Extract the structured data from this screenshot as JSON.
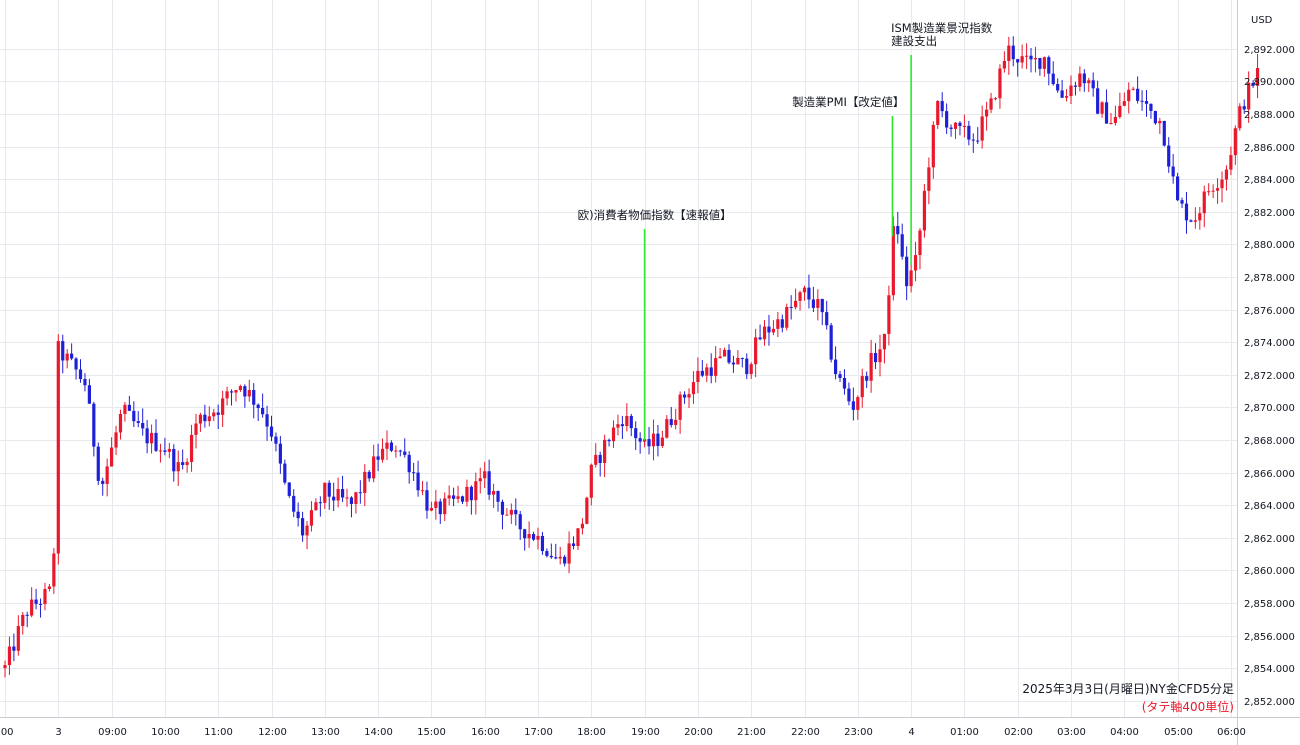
{
  "chart_data": {
    "type": "candlestick",
    "currency": "USD",
    "caption": "2025年3月3日(月曜日)NY金CFD5分足",
    "caption_note": "(タテ軸400単位)",
    "y_ticks": [
      "2,852.000",
      "2,854.000",
      "2,856.000",
      "2,858.000",
      "2,860.000",
      "2,862.000",
      "2,864.000",
      "2,866.000",
      "2,868.000",
      "2,870.000",
      "2,872.000",
      "2,874.000",
      "2,876.000",
      "2,878.000",
      "2,880.000",
      "2,882.000",
      "2,884.000",
      "2,886.000",
      "2,888.000",
      "2,890.000",
      "2,892.000"
    ],
    "ylim": [
      2851.0,
      2895.0
    ],
    "x_ticks": [
      ":00",
      "3",
      "09:00",
      "10:00",
      "11:00",
      "12:00",
      "13:00",
      "14:00",
      "15:00",
      "16:00",
      "17:00",
      "18:00",
      "19:00",
      "20:00",
      "21:00",
      "22:00",
      "23:00",
      "4",
      "01:00",
      "02:00",
      "03:00",
      "04:00",
      "05:00",
      "06:00"
    ],
    "grid": true,
    "colors": {
      "up": "#e8192c",
      "down": "#1e20d8",
      "event_line": "#2ee82e",
      "note": "#e8192c"
    },
    "events": [
      {
        "time_index": 12,
        "label_lines": [
          "欧)消費者物価指数【速報値】"
        ]
      },
      {
        "time_index": 16.65,
        "label_lines": [
          "製造業PMI【改定値】"
        ]
      },
      {
        "time_index": 17.0,
        "label_lines": [
          "ISM製造業景況指数",
          "建設支出"
        ]
      }
    ],
    "key_closes": [
      [
        0,
        2854.0
      ],
      [
        0.4,
        2857.5
      ],
      [
        0.9,
        2858.8
      ],
      [
        1.0,
        2873.5
      ],
      [
        1.2,
        2872.8
      ],
      [
        1.5,
        2871.5
      ],
      [
        1.8,
        2865.0
      ],
      [
        2.2,
        2869.8
      ],
      [
        2.6,
        2868.3
      ],
      [
        3.0,
        2867.5
      ],
      [
        3.3,
        2866.0
      ],
      [
        3.6,
        2869.2
      ],
      [
        4.0,
        2870.0
      ],
      [
        4.4,
        2871.5
      ],
      [
        4.8,
        2870.0
      ],
      [
        5.0,
        2868.5
      ],
      [
        5.3,
        2864.5
      ],
      [
        5.6,
        2862.2
      ],
      [
        6.0,
        2864.8
      ],
      [
        6.5,
        2864.0
      ],
      [
        7.0,
        2867.0
      ],
      [
        7.3,
        2867.8
      ],
      [
        7.6,
        2866.5
      ],
      [
        8.0,
        2863.5
      ],
      [
        8.5,
        2864.3
      ],
      [
        9.0,
        2865.5
      ],
      [
        9.3,
        2864.0
      ],
      [
        9.6,
        2862.8
      ],
      [
        10.0,
        2862.0
      ],
      [
        10.4,
        2860.5
      ],
      [
        10.8,
        2862.5
      ],
      [
        11.0,
        2866.0
      ],
      [
        11.3,
        2868.0
      ],
      [
        11.6,
        2869.5
      ],
      [
        12.0,
        2867.5
      ],
      [
        12.3,
        2868.2
      ],
      [
        12.7,
        2870.5
      ],
      [
        13.0,
        2872.0
      ],
      [
        13.5,
        2873.0
      ],
      [
        13.9,
        2872.5
      ],
      [
        14.2,
        2874.5
      ],
      [
        14.6,
        2875.5
      ],
      [
        15.0,
        2877.0
      ],
      [
        15.3,
        2876.0
      ],
      [
        15.6,
        2872.0
      ],
      [
        15.9,
        2870.0
      ],
      [
        16.2,
        2872.5
      ],
      [
        16.5,
        2874.0
      ],
      [
        16.7,
        2882.0
      ],
      [
        16.9,
        2877.5
      ],
      [
        17.1,
        2879.0
      ],
      [
        17.3,
        2884.5
      ],
      [
        17.5,
        2888.5
      ],
      [
        17.8,
        2887.0
      ],
      [
        18.2,
        2886.5
      ],
      [
        18.5,
        2888.5
      ],
      [
        18.8,
        2892.0
      ],
      [
        19.2,
        2891.0
      ],
      [
        19.5,
        2891.5
      ],
      [
        19.8,
        2889.0
      ],
      [
        20.2,
        2890.5
      ],
      [
        20.5,
        2888.5
      ],
      [
        20.8,
        2887.5
      ],
      [
        21.1,
        2889.5
      ],
      [
        21.4,
        2888.5
      ],
      [
        21.7,
        2887.5
      ],
      [
        22.0,
        2882.5
      ],
      [
        22.3,
        2881.5
      ],
      [
        22.6,
        2883.5
      ],
      [
        22.9,
        2884.5
      ],
      [
        23.2,
        2888.5
      ],
      [
        23.5,
        2890.5
      ]
    ]
  }
}
